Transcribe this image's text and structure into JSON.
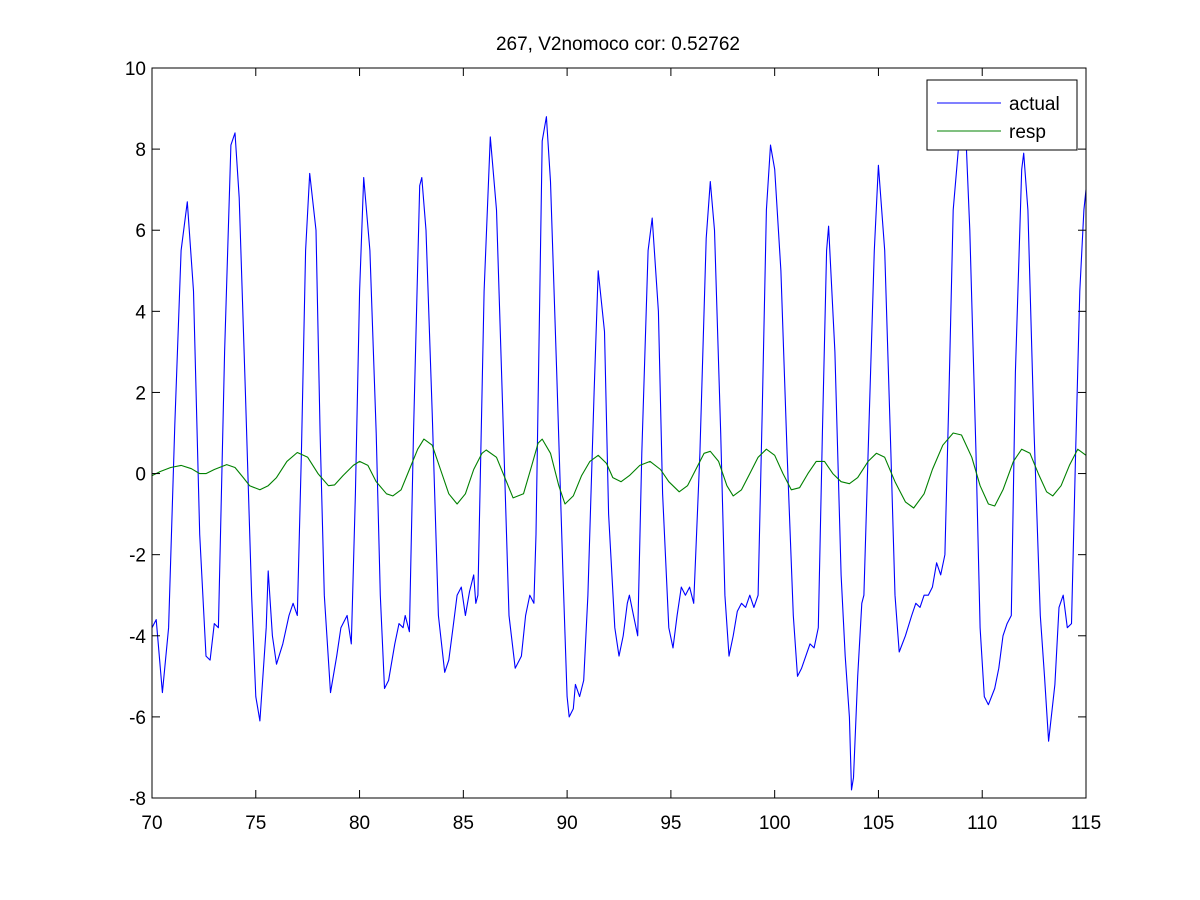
{
  "chart_data": {
    "type": "line",
    "title": "267, V2nomoco cor: 0.52762",
    "xlabel": "",
    "ylabel": "",
    "xlim": [
      70,
      115
    ],
    "ylim": [
      -8,
      10
    ],
    "x_ticks": [
      70,
      75,
      80,
      85,
      90,
      95,
      100,
      105,
      110,
      115
    ],
    "y_ticks": [
      -8,
      -6,
      -4,
      -2,
      0,
      2,
      4,
      6,
      8,
      10
    ],
    "grid": false,
    "legend_position": "top-right",
    "series": [
      {
        "name": "actual",
        "color": "#0000ff",
        "points": [
          [
            70.0,
            -3.8
          ],
          [
            70.2,
            -3.6
          ],
          [
            70.5,
            -5.4
          ],
          [
            70.8,
            -3.8
          ],
          [
            71.1,
            1.2
          ],
          [
            71.4,
            5.5
          ],
          [
            71.7,
            6.7
          ],
          [
            72.0,
            4.5
          ],
          [
            72.3,
            -1.5
          ],
          [
            72.6,
            -4.5
          ],
          [
            72.8,
            -4.6
          ],
          [
            73.0,
            -3.7
          ],
          [
            73.2,
            -3.8
          ],
          [
            73.5,
            3.0
          ],
          [
            73.8,
            8.1
          ],
          [
            74.0,
            8.4
          ],
          [
            74.2,
            6.8
          ],
          [
            74.5,
            2.0
          ],
          [
            74.8,
            -3.0
          ],
          [
            75.0,
            -5.5
          ],
          [
            75.2,
            -6.1
          ],
          [
            75.5,
            -3.8
          ],
          [
            75.6,
            -2.4
          ],
          [
            75.8,
            -4.0
          ],
          [
            76.0,
            -4.7
          ],
          [
            76.3,
            -4.2
          ],
          [
            76.6,
            -3.5
          ],
          [
            76.8,
            -3.2
          ],
          [
            77.0,
            -3.5
          ],
          [
            77.2,
            0.5
          ],
          [
            77.4,
            5.5
          ],
          [
            77.6,
            7.4
          ],
          [
            77.9,
            6.0
          ],
          [
            78.1,
            1.0
          ],
          [
            78.3,
            -3.0
          ],
          [
            78.6,
            -5.4
          ],
          [
            78.9,
            -4.5
          ],
          [
            79.1,
            -3.8
          ],
          [
            79.4,
            -3.5
          ],
          [
            79.6,
            -4.2
          ],
          [
            79.8,
            -0.5
          ],
          [
            80.0,
            4.5
          ],
          [
            80.2,
            7.3
          ],
          [
            80.5,
            5.5
          ],
          [
            80.8,
            1.0
          ],
          [
            81.0,
            -3.0
          ],
          [
            81.2,
            -5.3
          ],
          [
            81.4,
            -5.1
          ],
          [
            81.7,
            -4.2
          ],
          [
            81.9,
            -3.7
          ],
          [
            82.1,
            -3.8
          ],
          [
            82.2,
            -3.5
          ],
          [
            82.4,
            -3.9
          ],
          [
            82.6,
            1.0
          ],
          [
            82.9,
            7.1
          ],
          [
            83.0,
            7.3
          ],
          [
            83.2,
            6.0
          ],
          [
            83.5,
            1.5
          ],
          [
            83.8,
            -3.5
          ],
          [
            84.1,
            -4.9
          ],
          [
            84.3,
            -4.6
          ],
          [
            84.5,
            -3.8
          ],
          [
            84.7,
            -3.0
          ],
          [
            84.9,
            -2.8
          ],
          [
            85.1,
            -3.5
          ],
          [
            85.3,
            -2.9
          ],
          [
            85.5,
            -2.5
          ],
          [
            85.6,
            -3.2
          ],
          [
            85.7,
            -3.0
          ],
          [
            86.0,
            4.5
          ],
          [
            86.3,
            8.3
          ],
          [
            86.6,
            6.5
          ],
          [
            86.9,
            1.5
          ],
          [
            87.2,
            -3.5
          ],
          [
            87.5,
            -4.8
          ],
          [
            87.8,
            -4.5
          ],
          [
            88.0,
            -3.5
          ],
          [
            88.2,
            -3.0
          ],
          [
            88.4,
            -3.2
          ],
          [
            88.5,
            -1.5
          ],
          [
            88.8,
            8.2
          ],
          [
            89.0,
            8.8
          ],
          [
            89.2,
            7.2
          ],
          [
            89.5,
            2.5
          ],
          [
            89.8,
            -2.5
          ],
          [
            90.0,
            -5.5
          ],
          [
            90.1,
            -6.0
          ],
          [
            90.3,
            -5.8
          ],
          [
            90.4,
            -5.2
          ],
          [
            90.6,
            -5.5
          ],
          [
            90.8,
            -5.1
          ],
          [
            91.0,
            -3.0
          ],
          [
            91.3,
            2.0
          ],
          [
            91.5,
            5.0
          ],
          [
            91.8,
            3.5
          ],
          [
            92.0,
            -1.0
          ],
          [
            92.3,
            -3.8
          ],
          [
            92.5,
            -4.5
          ],
          [
            92.7,
            -4.0
          ],
          [
            92.9,
            -3.2
          ],
          [
            93.0,
            -3.0
          ],
          [
            93.2,
            -3.5
          ],
          [
            93.4,
            -4.0
          ],
          [
            93.6,
            0.5
          ],
          [
            93.9,
            5.5
          ],
          [
            94.1,
            6.3
          ],
          [
            94.4,
            4.0
          ],
          [
            94.6,
            -0.5
          ],
          [
            94.9,
            -3.8
          ],
          [
            95.1,
            -4.3
          ],
          [
            95.3,
            -3.5
          ],
          [
            95.5,
            -2.8
          ],
          [
            95.7,
            -3.0
          ],
          [
            95.9,
            -2.8
          ],
          [
            96.1,
            -3.2
          ],
          [
            96.4,
            0.5
          ],
          [
            96.7,
            5.8
          ],
          [
            96.9,
            7.2
          ],
          [
            97.1,
            6.0
          ],
          [
            97.4,
            1.0
          ],
          [
            97.6,
            -3.0
          ],
          [
            97.8,
            -4.5
          ],
          [
            98.0,
            -4.0
          ],
          [
            98.2,
            -3.4
          ],
          [
            98.4,
            -3.2
          ],
          [
            98.6,
            -3.3
          ],
          [
            98.8,
            -3.0
          ],
          [
            99.0,
            -3.3
          ],
          [
            99.2,
            -3.0
          ],
          [
            99.4,
            1.5
          ],
          [
            99.6,
            6.5
          ],
          [
            99.8,
            8.1
          ],
          [
            100.0,
            7.5
          ],
          [
            100.3,
            5.0
          ],
          [
            100.6,
            0.5
          ],
          [
            100.9,
            -3.5
          ],
          [
            101.1,
            -5.0
          ],
          [
            101.3,
            -4.8
          ],
          [
            101.5,
            -4.5
          ],
          [
            101.7,
            -4.2
          ],
          [
            101.9,
            -4.3
          ],
          [
            102.1,
            -3.8
          ],
          [
            102.3,
            1.0
          ],
          [
            102.5,
            5.5
          ],
          [
            102.6,
            6.1
          ],
          [
            102.9,
            3.0
          ],
          [
            103.2,
            -2.5
          ],
          [
            103.4,
            -4.5
          ],
          [
            103.6,
            -6.0
          ],
          [
            103.7,
            -7.8
          ],
          [
            103.8,
            -7.5
          ],
          [
            104.0,
            -5.0
          ],
          [
            104.2,
            -3.2
          ],
          [
            104.3,
            -3.0
          ],
          [
            104.5,
            0.5
          ],
          [
            104.8,
            5.5
          ],
          [
            105.0,
            7.6
          ],
          [
            105.3,
            5.5
          ],
          [
            105.6,
            0.5
          ],
          [
            105.8,
            -3.0
          ],
          [
            106.0,
            -4.4
          ],
          [
            106.3,
            -4.0
          ],
          [
            106.6,
            -3.5
          ],
          [
            106.8,
            -3.2
          ],
          [
            107.0,
            -3.3
          ],
          [
            107.2,
            -3.0
          ],
          [
            107.4,
            -3.0
          ],
          [
            107.6,
            -2.8
          ],
          [
            107.8,
            -2.2
          ],
          [
            108.0,
            -2.5
          ],
          [
            108.2,
            -2.0
          ],
          [
            108.4,
            2.0
          ],
          [
            108.6,
            6.5
          ],
          [
            108.9,
            8.3
          ],
          [
            109.2,
            8.5
          ],
          [
            109.4,
            6.0
          ],
          [
            109.7,
            0.5
          ],
          [
            109.9,
            -3.8
          ],
          [
            110.1,
            -5.5
          ],
          [
            110.3,
            -5.7
          ],
          [
            110.6,
            -5.3
          ],
          [
            110.8,
            -4.8
          ],
          [
            111.0,
            -4.0
          ],
          [
            111.2,
            -3.7
          ],
          [
            111.4,
            -3.5
          ],
          [
            111.6,
            2.5
          ],
          [
            111.9,
            7.5
          ],
          [
            112.0,
            7.9
          ],
          [
            112.2,
            6.5
          ],
          [
            112.5,
            1.0
          ],
          [
            112.8,
            -3.5
          ],
          [
            113.0,
            -5.0
          ],
          [
            113.2,
            -6.6
          ],
          [
            113.5,
            -5.2
          ],
          [
            113.7,
            -3.3
          ],
          [
            113.9,
            -3.0
          ],
          [
            114.1,
            -3.8
          ],
          [
            114.3,
            -3.7
          ],
          [
            114.5,
            0.5
          ],
          [
            114.7,
            4.5
          ],
          [
            114.9,
            6.5
          ],
          [
            115.0,
            7.0
          ]
        ]
      },
      {
        "name": "resp",
        "color": "#008000",
        "points": [
          [
            70.0,
            -0.05
          ],
          [
            70.4,
            0.05
          ],
          [
            70.9,
            0.15
          ],
          [
            71.4,
            0.2
          ],
          [
            71.9,
            0.12
          ],
          [
            72.3,
            0.0
          ],
          [
            72.6,
            0.0
          ],
          [
            73.0,
            0.1
          ],
          [
            73.6,
            0.22
          ],
          [
            74.0,
            0.15
          ],
          [
            74.4,
            -0.1
          ],
          [
            74.7,
            -0.3
          ],
          [
            75.2,
            -0.4
          ],
          [
            75.6,
            -0.3
          ],
          [
            76.0,
            -0.1
          ],
          [
            76.5,
            0.3
          ],
          [
            77.0,
            0.52
          ],
          [
            77.5,
            0.4
          ],
          [
            78.0,
            0.0
          ],
          [
            78.5,
            -0.3
          ],
          [
            78.8,
            -0.28
          ],
          [
            79.2,
            -0.05
          ],
          [
            79.7,
            0.2
          ],
          [
            80.0,
            0.3
          ],
          [
            80.4,
            0.2
          ],
          [
            80.8,
            -0.2
          ],
          [
            81.3,
            -0.5
          ],
          [
            81.6,
            -0.55
          ],
          [
            82.0,
            -0.4
          ],
          [
            82.4,
            0.1
          ],
          [
            82.8,
            0.6
          ],
          [
            83.1,
            0.85
          ],
          [
            83.5,
            0.7
          ],
          [
            83.9,
            0.1
          ],
          [
            84.3,
            -0.5
          ],
          [
            84.7,
            -0.75
          ],
          [
            85.1,
            -0.5
          ],
          [
            85.5,
            0.1
          ],
          [
            85.9,
            0.5
          ],
          [
            86.1,
            0.58
          ],
          [
            86.6,
            0.4
          ],
          [
            87.0,
            -0.1
          ],
          [
            87.4,
            -0.6
          ],
          [
            87.9,
            -0.5
          ],
          [
            88.3,
            0.2
          ],
          [
            88.6,
            0.75
          ],
          [
            88.8,
            0.85
          ],
          [
            89.2,
            0.5
          ],
          [
            89.6,
            -0.3
          ],
          [
            89.9,
            -0.75
          ],
          [
            90.3,
            -0.55
          ],
          [
            90.7,
            -0.05
          ],
          [
            91.1,
            0.3
          ],
          [
            91.5,
            0.45
          ],
          [
            91.9,
            0.25
          ],
          [
            92.2,
            -0.1
          ],
          [
            92.6,
            -0.2
          ],
          [
            93.0,
            -0.05
          ],
          [
            93.5,
            0.2
          ],
          [
            94.0,
            0.3
          ],
          [
            94.5,
            0.1
          ],
          [
            94.9,
            -0.2
          ],
          [
            95.4,
            -0.45
          ],
          [
            95.8,
            -0.3
          ],
          [
            96.2,
            0.1
          ],
          [
            96.6,
            0.5
          ],
          [
            96.9,
            0.55
          ],
          [
            97.3,
            0.3
          ],
          [
            97.7,
            -0.3
          ],
          [
            98.0,
            -0.55
          ],
          [
            98.4,
            -0.4
          ],
          [
            98.8,
            0.0
          ],
          [
            99.2,
            0.4
          ],
          [
            99.6,
            0.6
          ],
          [
            100.0,
            0.45
          ],
          [
            100.4,
            0.0
          ],
          [
            100.8,
            -0.4
          ],
          [
            101.2,
            -0.35
          ],
          [
            101.6,
            0.0
          ],
          [
            102.0,
            0.3
          ],
          [
            102.4,
            0.3
          ],
          [
            102.8,
            0.0
          ],
          [
            103.2,
            -0.2
          ],
          [
            103.6,
            -0.25
          ],
          [
            104.0,
            -0.1
          ],
          [
            104.5,
            0.3
          ],
          [
            104.9,
            0.5
          ],
          [
            105.3,
            0.4
          ],
          [
            105.8,
            -0.2
          ],
          [
            106.3,
            -0.7
          ],
          [
            106.7,
            -0.85
          ],
          [
            107.2,
            -0.5
          ],
          [
            107.6,
            0.1
          ],
          [
            108.1,
            0.7
          ],
          [
            108.6,
            1.0
          ],
          [
            109.0,
            0.95
          ],
          [
            109.5,
            0.4
          ],
          [
            109.9,
            -0.3
          ],
          [
            110.3,
            -0.75
          ],
          [
            110.6,
            -0.8
          ],
          [
            111.0,
            -0.4
          ],
          [
            111.5,
            0.3
          ],
          [
            111.9,
            0.6
          ],
          [
            112.3,
            0.5
          ],
          [
            112.7,
            0.0
          ],
          [
            113.1,
            -0.45
          ],
          [
            113.4,
            -0.55
          ],
          [
            113.8,
            -0.3
          ],
          [
            114.2,
            0.2
          ],
          [
            114.6,
            0.6
          ],
          [
            115.0,
            0.45
          ]
        ]
      }
    ]
  }
}
